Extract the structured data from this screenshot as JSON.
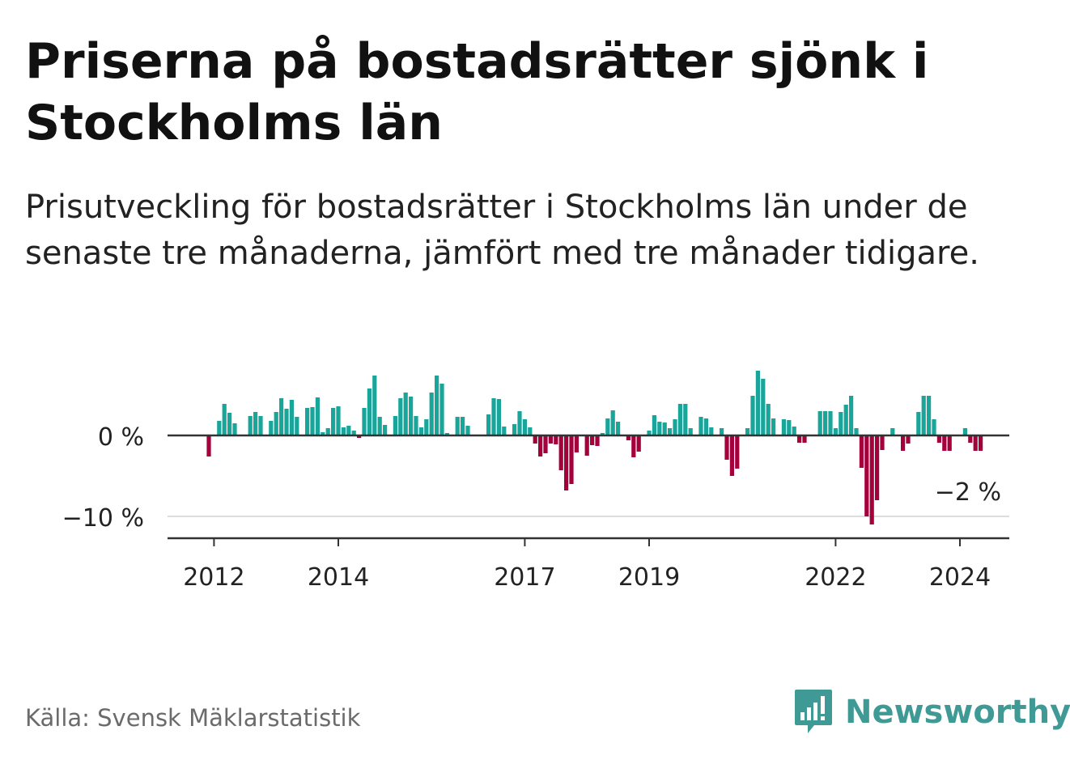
{
  "header": {
    "title": "Priserna på bostadsrätter sjönk i Stockholms län",
    "subtitle": "Prisutveckling för bostadsrätter i Stockholms län under de senaste tre månaderna, jämfört med tre månader tidigare."
  },
  "footer": {
    "source": "Källa: Svensk Mäklarstatistik",
    "brand": "Newsworthy"
  },
  "colors": {
    "positive": "#1aa59a",
    "negative": "#a4003c",
    "brand": "#3f9a95"
  },
  "chart_data": {
    "type": "bar",
    "title": "Priserna på bostadsrätter sjönk i Stockholms län",
    "ylabel": "",
    "xlabel": "",
    "ylim": [
      -12.5,
      8.5
    ],
    "yticks": [
      {
        "value": 0,
        "label": "0 %"
      },
      {
        "value": -10,
        "label": "−10 %"
      }
    ],
    "xticks": [
      {
        "year": 2012,
        "label": "2012"
      },
      {
        "year": 2014,
        "label": "2014"
      },
      {
        "year": 2017,
        "label": "2017"
      },
      {
        "year": 2019,
        "label": "2019"
      },
      {
        "year": 2022,
        "label": "2022"
      },
      {
        "year": 2024,
        "label": "2024"
      }
    ],
    "annotation": {
      "text": "−2 %",
      "value": -2
    },
    "start": "2011-12",
    "frequency": "monthly",
    "values": [
      -2.6,
      0,
      1.8,
      3.9,
      2.8,
      1.5,
      0,
      0,
      2.4,
      2.9,
      2.4,
      0,
      1.8,
      2.9,
      4.6,
      3.3,
      4.4,
      2.3,
      0,
      3.4,
      3.5,
      4.7,
      0.4,
      0.9,
      3.4,
      3.6,
      1.0,
      1.2,
      0.6,
      -0.3,
      3.4,
      5.8,
      7.4,
      2.3,
      1.3,
      0,
      2.4,
      4.6,
      5.3,
      4.8,
      2.4,
      1.0,
      2.0,
      5.3,
      7.4,
      6.4,
      0.3,
      0.1,
      2.3,
      2.3,
      1.2,
      0,
      0,
      0,
      2.6,
      4.6,
      4.5,
      1.1,
      0,
      1.4,
      3.0,
      2.0,
      1.0,
      -1.0,
      -2.6,
      -2.2,
      -1.0,
      -1.1,
      -4.3,
      -6.8,
      -6.0,
      -2.1,
      0,
      -2.5,
      -1.2,
      -1.3,
      0.3,
      2.1,
      3.1,
      1.7,
      0,
      -0.6,
      -2.7,
      -2.0,
      0,
      0.6,
      2.5,
      1.7,
      1.6,
      0.9,
      2.0,
      3.9,
      3.9,
      0.9,
      0,
      2.3,
      2.1,
      1.0,
      0,
      0.9,
      -3.0,
      -5.0,
      -4.1,
      0,
      0.9,
      4.9,
      8.0,
      7.0,
      3.9,
      2.1,
      0,
      2.0,
      1.9,
      1.1,
      -0.9,
      -0.9,
      0,
      0,
      3.0,
      3.0,
      3.0,
      0.9,
      2.9,
      3.8,
      4.9,
      0.9,
      -4.0,
      -10.0,
      -11.0,
      -8.0,
      -1.8,
      0,
      0.9,
      0,
      -1.9,
      -1.0,
      0,
      2.9,
      4.9,
      4.9,
      2.0,
      -0.9,
      -1.9,
      -1.9,
      0,
      0,
      0.9,
      -0.9,
      -1.9,
      -1.9
    ]
  }
}
